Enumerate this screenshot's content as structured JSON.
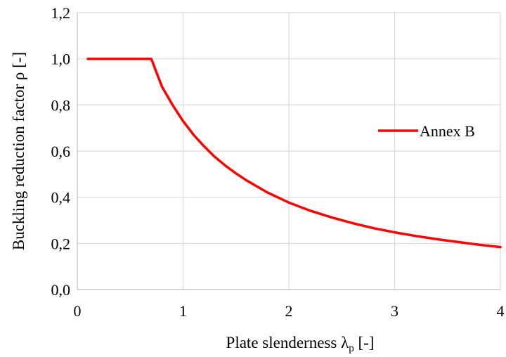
{
  "chart_data": {
    "type": "line",
    "xlabel": {
      "main": "Plate slenderness λ",
      "sub": "p",
      "suffix": " [-]"
    },
    "ylabel": "Buckling reduction factor ρ [-]",
    "xlim": [
      0,
      4
    ],
    "ylim": [
      0,
      1.2
    ],
    "x_ticks": [
      0,
      1,
      2,
      3,
      4
    ],
    "x_tick_labels": [
      "0",
      "1",
      "2",
      "3",
      "4"
    ],
    "y_ticks": [
      0,
      0.2,
      0.4,
      0.6,
      0.8,
      1.0,
      1.2
    ],
    "y_tick_labels": [
      "0,0",
      "0,2",
      "0,4",
      "0,6",
      "0,8",
      "1,0",
      "1,2"
    ],
    "grid": true,
    "legend_position": "right",
    "series": [
      {
        "name": "Annex B",
        "color": "#ff0000",
        "x": [
          0.1,
          0.7,
          0.8,
          0.9,
          1.0,
          1.1,
          1.2,
          1.3,
          1.4,
          1.5,
          1.6,
          1.8,
          2.0,
          2.2,
          2.4,
          2.6,
          2.8,
          3.0,
          3.2,
          3.4,
          3.6,
          3.8,
          4.0
        ],
        "y": [
          1.0,
          1.0,
          0.88,
          0.8,
          0.73,
          0.67,
          0.62,
          0.575,
          0.537,
          0.503,
          0.473,
          0.42,
          0.377,
          0.342,
          0.313,
          0.288,
          0.266,
          0.248,
          0.232,
          0.218,
          0.206,
          0.194,
          0.184
        ]
      }
    ]
  }
}
